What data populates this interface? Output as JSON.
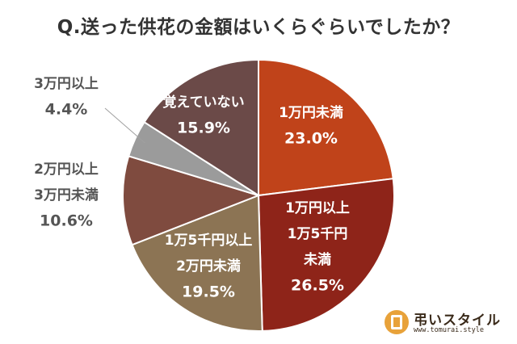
{
  "title": "Q.送った供花の金額はいくらぐらいでしたか？",
  "chart_data": {
    "type": "pie",
    "title": "Q.送った供花の金額はいくらぐらいでしたか？",
    "slices": [
      {
        "label_lines": [
          "1万円未満"
        ],
        "value": 23.0,
        "value_text": "23.0%",
        "color": "#c0431a"
      },
      {
        "label_lines": [
          "1万円以上",
          "1万5千円",
          "未満"
        ],
        "value": 26.5,
        "value_text": "26.5%",
        "color": "#8e2419"
      },
      {
        "label_lines": [
          "1万5千円以上",
          "2万円未満"
        ],
        "value": 19.5,
        "value_text": "19.5%",
        "color": "#8c7454"
      },
      {
        "label_lines": [
          "2万円以上",
          "3万円未満"
        ],
        "value": 10.6,
        "value_text": "10.6%",
        "color": "#7f4b3f"
      },
      {
        "label_lines": [
          "3万円以上"
        ],
        "value": 4.4,
        "value_text": "4.4%",
        "color": "#9b9b9b"
      },
      {
        "label_lines": [
          "覚えていない"
        ],
        "value": 15.9,
        "value_text": "15.9%",
        "color": "#6b4a48"
      }
    ]
  },
  "brand": {
    "name": "弔いスタイル",
    "url": "www.tomurai.style",
    "icon": "tomurai-logo-icon",
    "color": "#e8a23a"
  }
}
